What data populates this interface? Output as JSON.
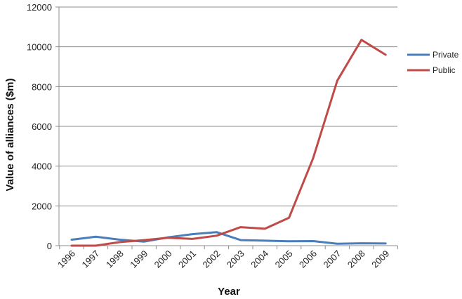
{
  "chart_data": {
    "type": "line",
    "title": "",
    "xlabel": "Year",
    "ylabel": "Value of alliances ($m)",
    "ylim": [
      0,
      12000
    ],
    "yticks": [
      0,
      2000,
      4000,
      6000,
      8000,
      10000,
      12000
    ],
    "grid": "horizontal",
    "legend_position": "right",
    "categories": [
      "1996",
      "1997",
      "1998",
      "1999",
      "2000",
      "2001",
      "2002",
      "2003",
      "2004",
      "2005",
      "2006",
      "2007",
      "2008",
      "2009"
    ],
    "series": [
      {
        "name": "Private",
        "color": "#4a7ebb",
        "values": [
          300,
          450,
          300,
          200,
          420,
          580,
          680,
          280,
          250,
          220,
          230,
          100,
          120,
          110
        ]
      },
      {
        "name": "Public",
        "color": "#be4b48",
        "values": [
          0,
          0,
          180,
          280,
          400,
          340,
          500,
          930,
          850,
          1400,
          4400,
          8300,
          10350,
          9600
        ]
      }
    ]
  }
}
